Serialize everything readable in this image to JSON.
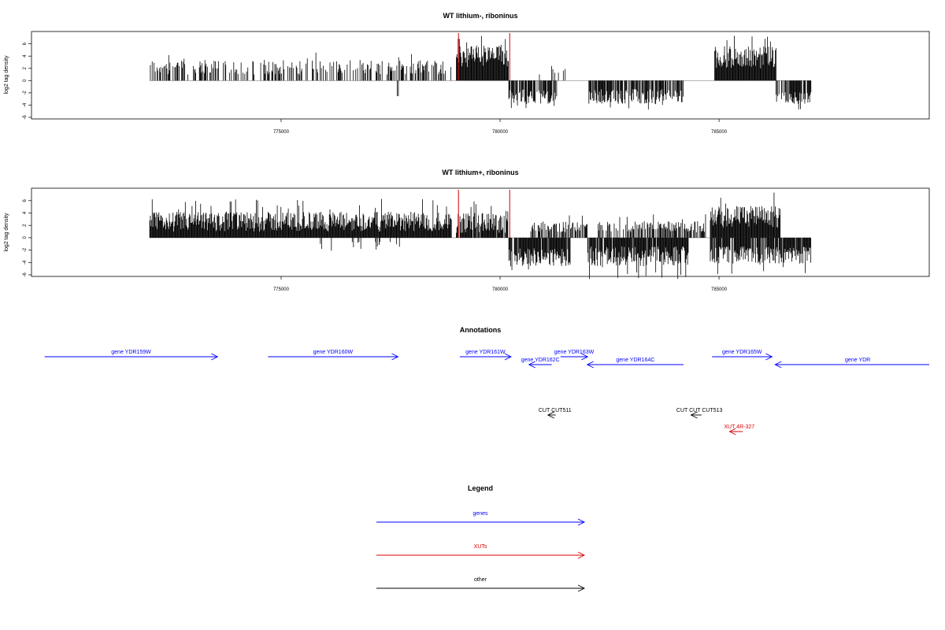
{
  "chart_data": [
    {
      "type": "bar",
      "title": "WT lithium-, riboninus",
      "ylabel": "log2 tag density",
      "xlabel": "",
      "xlim": [
        769300,
        789800
      ],
      "ylim": [
        -6,
        7.5
      ],
      "yticks": [
        -6,
        -4,
        -2,
        0,
        2,
        4,
        6
      ],
      "xticks": [
        775000,
        780000,
        785000
      ],
      "xtick_labels": [
        "775000",
        "780000",
        "785000"
      ],
      "markers": [
        779050,
        780220
      ],
      "bar_color": "#000000",
      "marker_color": "#cc0000",
      "segments": [
        {
          "start": 772000,
          "end": 778900,
          "sign": 1,
          "mean": 2.2,
          "spread": 1.2,
          "density": 0.45
        },
        {
          "start": 777650,
          "end": 777720,
          "sign": -1,
          "mean": 2.5,
          "spread": 0.3,
          "density": 0.5
        },
        {
          "start": 779000,
          "end": 780200,
          "sign": 1,
          "mean": 4.0,
          "spread": 1.8,
          "density": 1.0
        },
        {
          "start": 780200,
          "end": 781300,
          "sign": -1,
          "mean": 2.6,
          "spread": 1.2,
          "density": 0.8
        },
        {
          "start": 780800,
          "end": 781800,
          "sign": 1,
          "mean": 1.6,
          "spread": 0.8,
          "density": 0.2
        },
        {
          "start": 782000,
          "end": 784200,
          "sign": -1,
          "mean": 2.6,
          "spread": 1.2,
          "density": 0.75
        },
        {
          "start": 784900,
          "end": 786300,
          "sign": 1,
          "mean": 3.8,
          "spread": 1.8,
          "density": 1.0
        },
        {
          "start": 786300,
          "end": 787100,
          "sign": -1,
          "mean": 2.8,
          "spread": 1.0,
          "density": 0.8
        }
      ],
      "data_range": [
        772000,
        787100
      ]
    },
    {
      "type": "bar",
      "title": "WT lithium+, riboninus",
      "ylabel": "log2 tag density",
      "xlabel": "",
      "xlim": [
        769300,
        789800
      ],
      "ylim": [
        -6,
        7.5
      ],
      "yticks": [
        -6,
        -4,
        -2,
        0,
        2,
        4,
        6
      ],
      "xticks": [
        775000,
        780000,
        785000
      ],
      "xtick_labels": [
        "775000",
        "780000",
        "785000"
      ],
      "markers": [
        779050,
        780220
      ],
      "bar_color": "#000000",
      "marker_color": "#cc0000",
      "segments": [
        {
          "start": 772000,
          "end": 778900,
          "sign": 1,
          "mean": 2.6,
          "spread": 1.6,
          "density": 1.0
        },
        {
          "start": 775700,
          "end": 778000,
          "sign": -1,
          "mean": 1.2,
          "spread": 0.8,
          "density": 0.08
        },
        {
          "start": 779000,
          "end": 780200,
          "sign": 1,
          "mean": 2.4,
          "spread": 1.6,
          "density": 0.9
        },
        {
          "start": 780200,
          "end": 781600,
          "sign": -1,
          "mean": 3.2,
          "spread": 1.5,
          "density": 0.9
        },
        {
          "start": 780700,
          "end": 782000,
          "sign": 1,
          "mean": 1.8,
          "spread": 0.9,
          "density": 0.6
        },
        {
          "start": 782000,
          "end": 784300,
          "sign": -1,
          "mean": 3.0,
          "spread": 1.6,
          "density": 0.95
        },
        {
          "start": 782200,
          "end": 784700,
          "sign": 1,
          "mean": 1.8,
          "spread": 0.9,
          "density": 0.5
        },
        {
          "start": 784800,
          "end": 786400,
          "sign": 1,
          "mean": 3.4,
          "spread": 1.8,
          "density": 1.0
        },
        {
          "start": 784800,
          "end": 787100,
          "sign": -1,
          "mean": 2.8,
          "spread": 1.4,
          "density": 0.9
        }
      ],
      "data_range": [
        772000,
        787100
      ]
    }
  ],
  "annotations": {
    "title": "Annotations",
    "features": [
      {
        "label": "gene YDR159W",
        "start": 769600,
        "end": 773550,
        "strand": "+",
        "color": "#0000ff",
        "row": "gene_top"
      },
      {
        "label": "gene YDR160W",
        "start": 774700,
        "end": 777670,
        "strand": "+",
        "color": "#0000ff",
        "row": "gene_top"
      },
      {
        "label": "gene YDR161W",
        "start": 779080,
        "end": 780250,
        "strand": "+",
        "color": "#0000ff",
        "row": "gene_top"
      },
      {
        "label": "gene YDR162C",
        "start": 780660,
        "end": 781180,
        "strand": "-",
        "color": "#0000ff",
        "row": "gene_bottom"
      },
      {
        "label": "gene YDR163W",
        "start": 781380,
        "end": 782000,
        "strand": "+",
        "color": "#0000ff",
        "row": "gene_top"
      },
      {
        "label": "gene YDR164C",
        "start": 781990,
        "end": 784190,
        "strand": "-",
        "color": "#0000ff",
        "row": "gene_bottom"
      },
      {
        "label": "gene YDR165W",
        "start": 784840,
        "end": 786210,
        "strand": "+",
        "color": "#0000ff",
        "row": "gene_top"
      },
      {
        "label": "gene YDR",
        "start": 786280,
        "end": 789800,
        "strand": "-",
        "color": "#0000ff",
        "row": "gene_bottom",
        "label_offset": 7
      },
      {
        "label": "CUT CUT511",
        "start": 781200,
        "end": 781200,
        "strand": "-",
        "color": "#000000",
        "row": "cut",
        "small": true
      },
      {
        "label": "CUT CUT CUT513",
        "start": 784360,
        "end": 784600,
        "strand": "-",
        "color": "#000000",
        "row": "cut",
        "small": true
      },
      {
        "label": "XUT 4R-327",
        "start": 785240,
        "end": 785540,
        "strand": "-",
        "color": "#dd0000",
        "row": "xut",
        "small": true
      }
    ]
  },
  "legend": {
    "title": "Legend",
    "items": [
      {
        "label": "genes",
        "color": "#0000ff"
      },
      {
        "label": "XUTs",
        "color": "#dd0000"
      },
      {
        "label": "other",
        "color": "#000000"
      }
    ]
  }
}
